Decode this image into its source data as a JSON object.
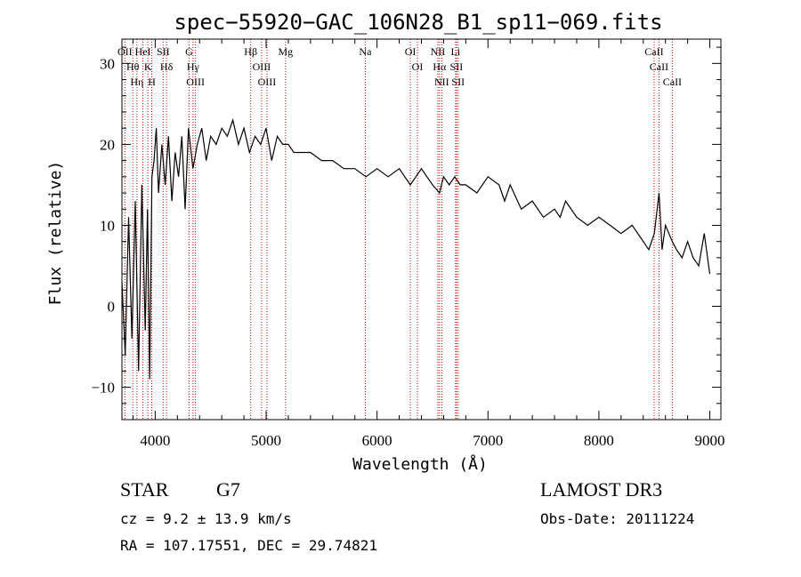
{
  "chart_data": {
    "type": "line",
    "title": "spec−55920−GAC_106N28_B1_sp11−069.fits",
    "xlabel": "Wavelength (Å)",
    "ylabel": "Flux (relative)",
    "xlim": [
      3700,
      9100
    ],
    "ylim": [
      -14,
      33
    ],
    "xticks": [
      4000,
      5000,
      6000,
      7000,
      8000,
      9000
    ],
    "xtick_labels": [
      "4000",
      "5000",
      "6000",
      "7000",
      "8000",
      "9000"
    ],
    "yticks": [
      -10,
      0,
      10,
      20,
      30
    ],
    "ytick_labels": [
      "−10",
      "0",
      "10",
      "20",
      "30"
    ],
    "grid": false,
    "series": [
      {
        "name": "flux",
        "x": [
          3700,
          3730,
          3760,
          3790,
          3820,
          3850,
          3880,
          3910,
          3930,
          3950,
          3970,
          3990,
          4010,
          4030,
          4060,
          4090,
          4120,
          4150,
          4180,
          4210,
          4240,
          4270,
          4300,
          4340,
          4380,
          4420,
          4460,
          4500,
          4550,
          4600,
          4650,
          4700,
          4750,
          4800,
          4850,
          4900,
          4950,
          5000,
          5050,
          5100,
          5150,
          5200,
          5250,
          5300,
          5400,
          5500,
          5600,
          5700,
          5800,
          5900,
          6000,
          6100,
          6200,
          6300,
          6350,
          6400,
          6450,
          6500,
          6563,
          6600,
          6650,
          6700,
          6750,
          6800,
          6900,
          7000,
          7100,
          7150,
          7200,
          7300,
          7400,
          7500,
          7600,
          7650,
          7700,
          7800,
          7900,
          8000,
          8100,
          8200,
          8300,
          8400,
          8450,
          8500,
          8542,
          8570,
          8600,
          8662,
          8700,
          8750,
          8800,
          8850,
          8900,
          8950,
          9000
        ],
        "values": [
          3,
          -6,
          11,
          -4,
          13,
          -8,
          15,
          -3,
          12,
          -9,
          16,
          18,
          22,
          14,
          20,
          15,
          21,
          13,
          19,
          16,
          21,
          12,
          22,
          17,
          20,
          22,
          18,
          21,
          20,
          22,
          21,
          23,
          20,
          22,
          19,
          21,
          20,
          22,
          18,
          21,
          20,
          20,
          19,
          19,
          19,
          18,
          18,
          17,
          17,
          16,
          17,
          16,
          17,
          15,
          16,
          17,
          16,
          15,
          14,
          16,
          15,
          16,
          15,
          15,
          14,
          16,
          15,
          13,
          15,
          12,
          13,
          11,
          12,
          11,
          13,
          11,
          10,
          11,
          10,
          9,
          10,
          8,
          7,
          9,
          14,
          7,
          10,
          8,
          7,
          6,
          8,
          6,
          5,
          9,
          4
        ]
      }
    ],
    "line_labels": [
      {
        "label": "Hθ",
        "wavelength": 3798
      },
      {
        "label": "Hη",
        "wavelength": 3835
      },
      {
        "label": "OII",
        "wavelength": 3727
      },
      {
        "label": "HeI",
        "wavelength": 3889
      },
      {
        "label": "K",
        "wavelength": 3934
      },
      {
        "label": "H",
        "wavelength": 3969
      },
      {
        "label": "SII",
        "wavelength": 4072
      },
      {
        "label": "Hδ",
        "wavelength": 4102
      },
      {
        "label": "OIII",
        "wavelength": 4363
      },
      {
        "label": "Hγ",
        "wavelength": 4341
      },
      {
        "label": "G",
        "wavelength": 4305
      },
      {
        "label": "Hβ",
        "wavelength": 4861
      },
      {
        "label": "OIII",
        "wavelength": 4959
      },
      {
        "label": "OIII",
        "wavelength": 5007
      },
      {
        "label": "Mg",
        "wavelength": 5175
      },
      {
        "label": "Na",
        "wavelength": 5894
      },
      {
        "label": "OI",
        "wavelength": 6300
      },
      {
        "label": "OI",
        "wavelength": 6364
      },
      {
        "label": "Hα",
        "wavelength": 6563
      },
      {
        "label": "NII",
        "wavelength": 6548
      },
      {
        "label": "NII",
        "wavelength": 6583
      },
      {
        "label": "SII",
        "wavelength": 6716
      },
      {
        "label": "Li",
        "wavelength": 6708
      },
      {
        "label": "SII",
        "wavelength": 6731
      },
      {
        "label": "CaII",
        "wavelength": 8542
      },
      {
        "label": "CaII",
        "wavelength": 8498
      },
      {
        "label": "CaII",
        "wavelength": 8662
      }
    ]
  },
  "info": {
    "class_label": "STAR",
    "subclass": "G7",
    "survey": "LAMOST DR3",
    "redshift_text": "cz = 9.2 ± 13.9 km/s",
    "obs_date_text": "Obs-Date: 20111224",
    "coords_text": "RA = 107.17551, DEC =  29.74821"
  },
  "colors": {
    "spectrum": "#000000",
    "line_marker": "#cc0000",
    "text": "#000000",
    "background": "#ffffff"
  }
}
